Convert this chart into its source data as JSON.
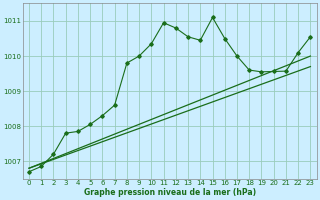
{
  "bg_color": "#cceeff",
  "grid_color": "#99ccbb",
  "line_color": "#1a6e1a",
  "xlabel": "Graphe pression niveau de la mer (hPa)",
  "xlim": [
    -0.5,
    23.5
  ],
  "ylim": [
    1006.5,
    1011.5
  ],
  "yticks": [
    1007,
    1008,
    1009,
    1010,
    1011
  ],
  "xticks": [
    0,
    1,
    2,
    3,
    4,
    5,
    6,
    7,
    8,
    9,
    10,
    11,
    12,
    13,
    14,
    15,
    16,
    17,
    18,
    19,
    20,
    21,
    22,
    23
  ],
  "trend1_x": [
    0,
    23
  ],
  "trend1_y": [
    1006.8,
    1009.7
  ],
  "trend2_x": [
    0,
    23
  ],
  "trend2_y": [
    1006.8,
    1010.0
  ],
  "jagged_x": [
    0,
    1,
    2,
    3,
    4,
    5,
    6,
    7,
    8,
    9,
    10,
    11,
    12,
    13,
    14,
    15,
    16,
    17,
    18,
    19,
    20,
    21,
    22,
    23
  ],
  "jagged_y": [
    1006.7,
    1006.85,
    1007.2,
    1007.8,
    1007.85,
    1008.05,
    1008.3,
    1008.6,
    1009.8,
    1010.0,
    1010.35,
    1010.95,
    1010.8,
    1010.55,
    1010.45,
    1011.1,
    1010.5,
    1010.0,
    1009.6,
    1009.55,
    1009.56,
    1009.57,
    1010.1,
    1010.55
  ]
}
